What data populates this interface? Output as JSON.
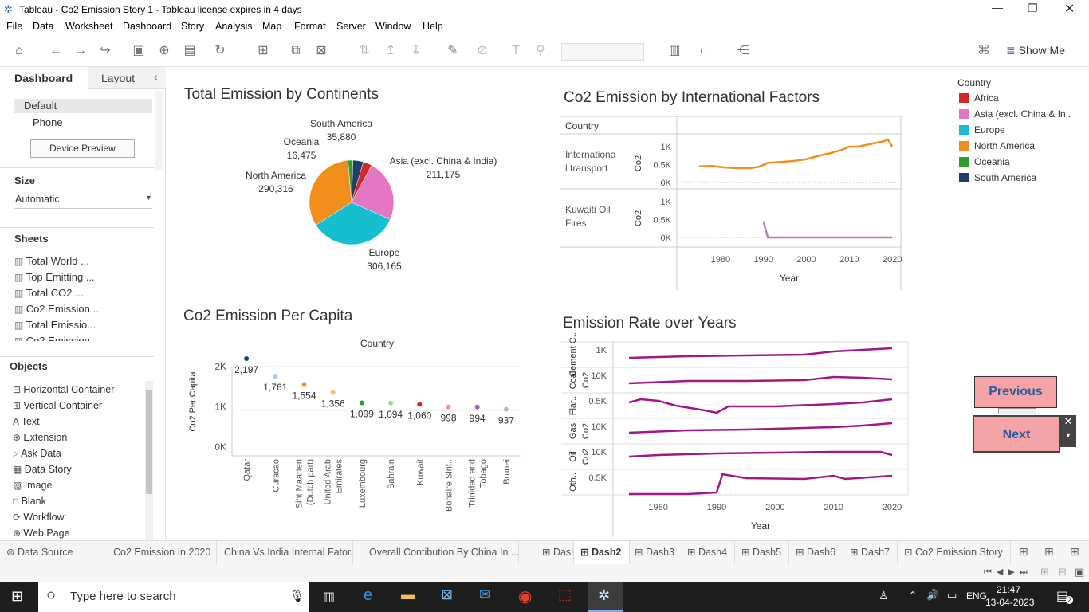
{
  "window": {
    "title": "Tableau - Co2 Emission Story 1 - Tableau license expires in 4 days"
  },
  "menu": [
    "File",
    "Data",
    "Worksheet",
    "Dashboard",
    "Story",
    "Analysis",
    "Map",
    "Format",
    "Server",
    "Window",
    "Help"
  ],
  "toolbar": {
    "show_me": "Show Me"
  },
  "left_panel": {
    "tab_dashboard": "Dashboard",
    "tab_layout": "Layout",
    "device_default": "Default",
    "device_phone": "Phone",
    "device_preview": "Device Preview",
    "size_header": "Size",
    "size_value": "Automatic",
    "sheets_header": "Sheets",
    "sheets": [
      "Total World ...",
      "Top Emitting ...",
      "Total CO2 ...",
      "Co2 Emission ...",
      "Total Emissio...",
      "Co2 Emission"
    ],
    "objects_header": "Objects",
    "objects": [
      "Horizontal Container",
      "Vertical Container",
      "Text",
      "Extension",
      "Ask Data",
      "Data Story",
      "Image",
      "Blank",
      "Workflow",
      "Web Page"
    ]
  },
  "dashboard": {
    "pie_title": "Total Emission by Continents",
    "intl_title": "Co2 Emission by International Factors",
    "percap_title": "Co2 Emission Per Capita",
    "rate_title": "Emission Rate over Years",
    "legend_title": "Country",
    "previous": "Previous",
    "next": "Next"
  },
  "chart_data": [
    {
      "type": "pie",
      "title": "Total Emission by Continents",
      "categories": [
        "Asia (excl. China & India)",
        "Europe",
        "North America",
        "Oceania",
        "South America",
        "Africa"
      ],
      "values": [
        211175,
        306165,
        290316,
        16475,
        35880,
        null
      ],
      "labels": [
        "211,175",
        "306,165",
        "290,316",
        "16,475",
        "35,880",
        ""
      ],
      "colors": [
        "#e377c2",
        "#17becf",
        "#f28e1c",
        "#2ca02c",
        "#1f3f6b",
        "#d62728"
      ]
    },
    {
      "type": "line",
      "title": "Co2 Emission by International Factors",
      "row_header": "Country",
      "rows": [
        "International transport",
        "Kuwaiti Oil Fires"
      ],
      "xlabel": "Year",
      "ylabel": "Co2",
      "xlim": [
        1970,
        2022
      ],
      "x_ticks": [
        "1980",
        "1990",
        "2000",
        "2010",
        "2020"
      ],
      "y_ticks": [
        "0K",
        "0.5K",
        "1K"
      ],
      "series": [
        {
          "name": "International transport",
          "x": [
            1975,
            1978,
            1981,
            1984,
            1987,
            1989,
            1991,
            1994,
            1997,
            2000,
            2003,
            2006,
            2008,
            2010,
            2012,
            2014,
            2016,
            2018,
            2019,
            2020
          ],
          "y": [
            450,
            460,
            420,
            400,
            400,
            440,
            550,
            570,
            600,
            650,
            750,
            830,
            900,
            1000,
            1000,
            1050,
            1100,
            1150,
            1200,
            1000
          ],
          "color": "#f28e1c"
        },
        {
          "name": "Kuwaiti Oil Fires",
          "x": [
            1990,
            1991,
            1992,
            2000,
            2010,
            2020
          ],
          "y": [
            450,
            0,
            0,
            0,
            0,
            0
          ],
          "color": "#b77fb0"
        }
      ]
    },
    {
      "type": "scatter",
      "title": "Co2 Emission Per Capita",
      "xlabel": "Country",
      "ylabel": "Co2 Per Capita",
      "y_ticks": [
        "0K",
        "1K",
        "2K"
      ],
      "categories": [
        "Qatar",
        "Curacao",
        "Sint Maarten (Dutch part)",
        "United Arab Emirates",
        "Luxembourg",
        "Bahrain",
        "Kuwait",
        "Bonaire Sint ...",
        "Trinidad and Tobago",
        "Brunei"
      ],
      "tick_labels": [
        [
          "Qatar"
        ],
        [
          "Curacao"
        ],
        [
          "Sint Maarten",
          "(Dutch part)"
        ],
        [
          "United Arab",
          "Emirates"
        ],
        [
          "Luxembourg"
        ],
        [
          "Bahrain"
        ],
        [
          "Kuwait"
        ],
        [
          "Bonaire Sint.."
        ],
        [
          "Trinidad and",
          "Tobago"
        ],
        [
          "Brunei"
        ]
      ],
      "values": [
        2197,
        1761,
        1554,
        1356,
        1099,
        1094,
        1060,
        998,
        994,
        937
      ],
      "labels": [
        "2,197",
        "1,761",
        "1,554",
        "1,356",
        "1,099",
        "1,094",
        "1,060",
        "998",
        "994",
        "937"
      ],
      "colors": [
        "#1f3f6b",
        "#aec7e8",
        "#f28e1c",
        "#ffbb78",
        "#2ca02c",
        "#98df8a",
        "#d62728",
        "#ff9896",
        "#9467bd",
        "#c5b0d5"
      ]
    },
    {
      "type": "line",
      "title": "Emission Rate over Years",
      "xlabel": "Year",
      "x_ticks": [
        "1980",
        "1990",
        "2000",
        "2010",
        "2020"
      ],
      "rows": [
        {
          "label": "Cement C..",
          "tick": "1K"
        },
        {
          "label": "Coal",
          "ylabel": "Co2",
          "tick": "10K"
        },
        {
          "label": "Flar..",
          "tick": "0.5K"
        },
        {
          "label": "Gas",
          "ylabel": "Co2",
          "tick": "10K"
        },
        {
          "label": "Oil",
          "ylabel": "Co2",
          "tick": "10K"
        },
        {
          "label": "Oth..",
          "tick": "0.5K"
        }
      ],
      "color": "#a3178b"
    }
  ],
  "legend": {
    "title": "Country",
    "items": [
      {
        "label": "Africa",
        "color": "#d62728"
      },
      {
        "label": "Asia (excl. China & In..",
        "color": "#e377c2"
      },
      {
        "label": "Europe",
        "color": "#17becf"
      },
      {
        "label": "North America",
        "color": "#f28e1c"
      },
      {
        "label": "Oceania",
        "color": "#2ca02c"
      },
      {
        "label": "South America",
        "color": "#1f3f6b"
      }
    ]
  },
  "sheet_tabs": [
    "Data Source",
    "Co2 Emission In 2020",
    "China Vs India Internal Fators",
    "Overall Contibution By China In ...",
    "Dash1",
    "Dash2",
    "Dash3",
    "Dash4",
    "Dash5",
    "Dash6",
    "Dash7",
    "Co2 Emission Story"
  ],
  "active_tab": "Dash2",
  "taskbar": {
    "search_placeholder": "Type here to search",
    "lang": "ENG",
    "time": "21:47",
    "date": "13-04-2023",
    "notif_count": "2"
  }
}
